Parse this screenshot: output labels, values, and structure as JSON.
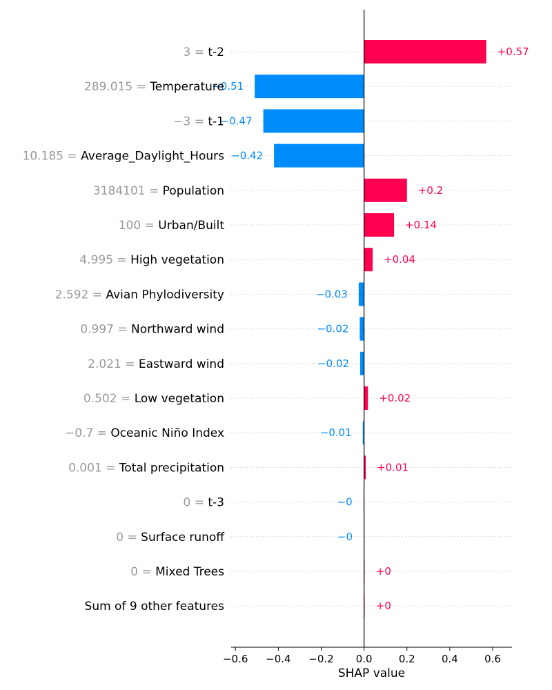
{
  "chart_data": {
    "type": "bar",
    "orientation": "horizontal",
    "xlabel": "SHAP value",
    "xlim": [
      -0.62,
      0.69
    ],
    "xticks": [
      -0.6,
      -0.4,
      -0.2,
      0.0,
      0.2,
      0.4,
      0.6
    ],
    "xtick_labels": [
      "−0.6",
      "−0.4",
      "−0.2",
      "0.0",
      "0.2",
      "0.4",
      "0.6"
    ],
    "colors": {
      "positive": "#ff0051",
      "negative": "#008bfb",
      "grid": "#cccccc",
      "feature_value": "#999999"
    },
    "rows": [
      {
        "feature_value": "3",
        "feature_name": "t-2",
        "shap": 0.57,
        "label": "+0.57"
      },
      {
        "feature_value": "289.015",
        "feature_name": "Temperature",
        "shap": -0.51,
        "label": "−0.51"
      },
      {
        "feature_value": "−3",
        "feature_name": "t-1",
        "shap": -0.47,
        "label": "−0.47"
      },
      {
        "feature_value": "10.185",
        "feature_name": "Average_Daylight_Hours",
        "shap": -0.42,
        "label": "−0.42"
      },
      {
        "feature_value": "3184101",
        "feature_name": "Population",
        "shap": 0.2,
        "label": "+0.2"
      },
      {
        "feature_value": "100",
        "feature_name": "Urban/Built",
        "shap": 0.14,
        "label": "+0.14"
      },
      {
        "feature_value": "4.995",
        "feature_name": "High vegetation",
        "shap": 0.04,
        "label": "+0.04"
      },
      {
        "feature_value": "2.592",
        "feature_name": "Avian Phylodiversity",
        "shap": -0.025,
        "label": "−0.03"
      },
      {
        "feature_value": "0.997",
        "feature_name": "Northward wind",
        "shap": -0.02,
        "label": "−0.02"
      },
      {
        "feature_value": "2.021",
        "feature_name": "Eastward wind",
        "shap": -0.018,
        "label": "−0.02"
      },
      {
        "feature_value": "0.502",
        "feature_name": "Low vegetation",
        "shap": 0.018,
        "label": "+0.02"
      },
      {
        "feature_value": "−0.7",
        "feature_name": "Oceanic Niño Index",
        "shap": -0.006,
        "label": "−0.01"
      },
      {
        "feature_value": "0.001",
        "feature_name": "Total precipitation",
        "shap": 0.008,
        "label": "+0.01"
      },
      {
        "feature_value": "0",
        "feature_name": "t-3",
        "shap": -0.003,
        "label": "−0"
      },
      {
        "feature_value": "0",
        "feature_name": "Surface runoff",
        "shap": -0.002,
        "label": "−0"
      },
      {
        "feature_value": "0",
        "feature_name": "Mixed Trees",
        "shap": 0.002,
        "label": "+0"
      },
      {
        "feature_value": "",
        "feature_name": "Sum of 9 other features",
        "shap": 0.004,
        "label": "+0"
      }
    ]
  }
}
